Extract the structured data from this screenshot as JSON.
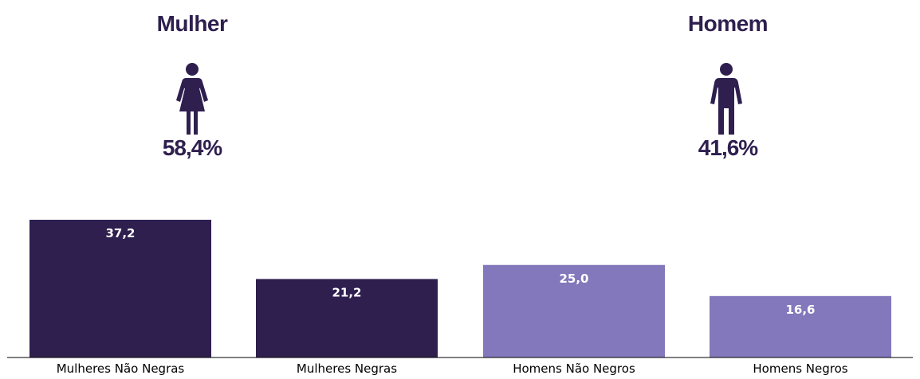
{
  "groups": [
    {
      "title": "Mulher",
      "percent": "58,4%",
      "icon": "woman-icon"
    },
    {
      "title": "Homem",
      "percent": "41,6%",
      "icon": "man-icon"
    }
  ],
  "colors": {
    "dark": "#2e1f4f",
    "light": "#8378bb",
    "text": "#2e1f4f"
  },
  "chart_data": {
    "type": "bar",
    "categories": [
      "Mulheres Não Negras",
      "Mulheres Negras",
      "Homens Não Negros",
      "Homens Negros"
    ],
    "values": [
      37.2,
      21.2,
      25.0,
      16.6
    ],
    "value_labels": [
      "37,2",
      "21,2",
      "25,0",
      "16,6"
    ],
    "bar_colors": [
      "#2e1f4f",
      "#2e1f4f",
      "#8378bb",
      "#8378bb"
    ],
    "ylim": [
      0,
      40
    ],
    "grid": false,
    "y_axis_visible": false
  }
}
